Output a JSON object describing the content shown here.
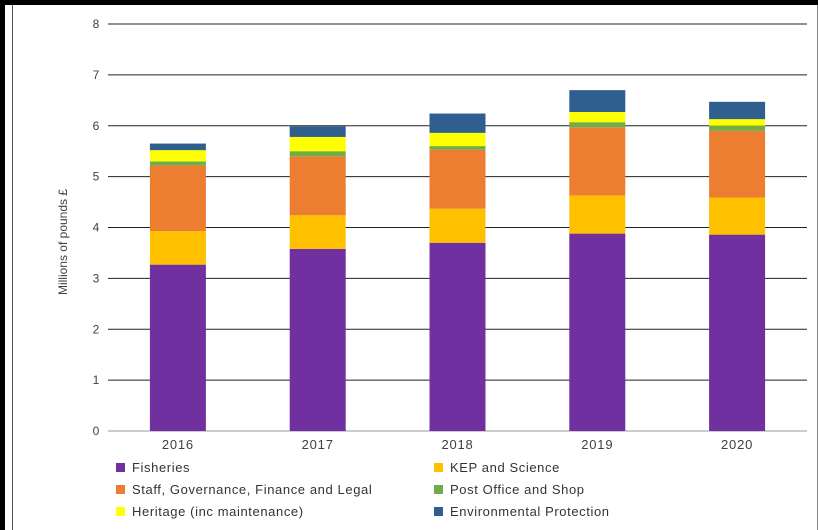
{
  "chart_data": {
    "type": "bar",
    "stacked": true,
    "categories": [
      "2016",
      "2017",
      "2018",
      "2019",
      "2020"
    ],
    "ylabel": "Millions of pounds £",
    "ylim": [
      0,
      8
    ],
    "yticks": [
      0,
      1,
      2,
      3,
      4,
      5,
      6,
      7,
      8
    ],
    "grid": true,
    "legend_position": "bottom",
    "series": [
      {
        "name": "Fisheries",
        "color": "#7030A0",
        "values": [
          3.27,
          3.58,
          3.7,
          3.88,
          3.86
        ]
      },
      {
        "name": "KEP and Science",
        "color": "#FFC000",
        "values": [
          0.66,
          0.66,
          0.67,
          0.75,
          0.73
        ]
      },
      {
        "name": "Staff, Governance, Finance and Legal",
        "color": "#ED7D31",
        "values": [
          1.29,
          1.16,
          1.16,
          1.34,
          1.31
        ]
      },
      {
        "name": "Post Office and Shop",
        "color": "#70AD47",
        "values": [
          0.08,
          0.1,
          0.07,
          0.1,
          0.1
        ]
      },
      {
        "name": "Heritage (inc maintenance)",
        "color": "#FFFF00",
        "values": [
          0.22,
          0.28,
          0.26,
          0.2,
          0.13
        ]
      },
      {
        "name": "Environmental Protection",
        "color": "#2F5F8F",
        "values": [
          0.13,
          0.21,
          0.38,
          0.43,
          0.34
        ]
      }
    ]
  }
}
